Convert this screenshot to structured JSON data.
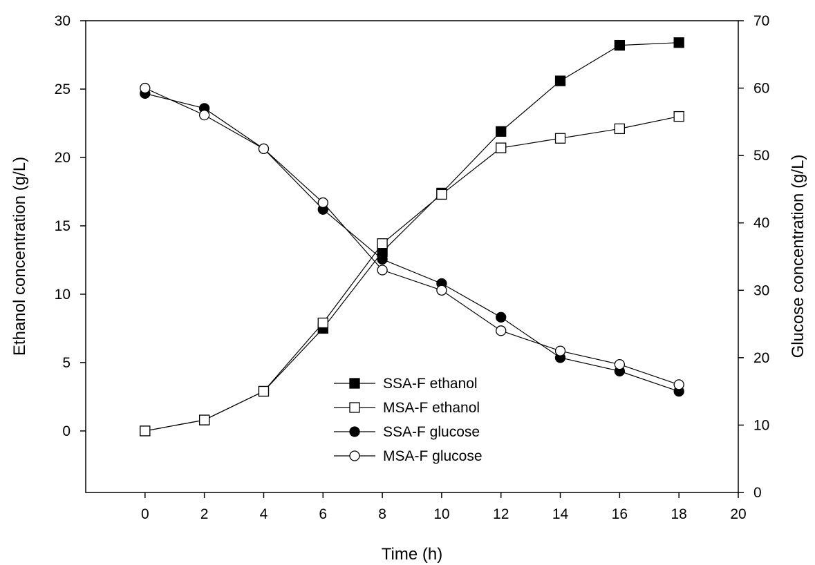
{
  "chart_data": {
    "type": "line",
    "title": "",
    "xlabel": "Time (h)",
    "ylabel": "Ethanol concentration (g/L)",
    "y2label": "Glucose concentration (g/L)",
    "xlim": [
      -2,
      20
    ],
    "ylim": [
      -4.5,
      30
    ],
    "y2lim": [
      0,
      70
    ],
    "xticks": [
      0,
      2,
      4,
      6,
      8,
      10,
      12,
      14,
      16,
      18,
      20
    ],
    "yticks": [
      0,
      5,
      10,
      15,
      20,
      25,
      30
    ],
    "y2ticks": [
      0,
      10,
      20,
      30,
      40,
      50,
      60,
      70
    ],
    "grid": false,
    "legend_position": "bottom-center",
    "x": [
      0,
      2,
      4,
      6,
      8,
      10,
      12,
      14,
      16,
      18
    ],
    "series": [
      {
        "name": "SSA-F ethanol",
        "axis": "left",
        "marker": "square-filled",
        "values": [
          0,
          0.8,
          2.9,
          7.5,
          13.1,
          17.4,
          21.9,
          25.6,
          28.2,
          28.4
        ]
      },
      {
        "name": "MSA-F ethanol",
        "axis": "left",
        "marker": "square-open",
        "values": [
          0,
          0.8,
          2.9,
          7.9,
          13.7,
          17.3,
          20.7,
          21.4,
          22.1,
          23.0
        ]
      },
      {
        "name": "SSA-F glucose",
        "axis": "right",
        "marker": "circle-filled",
        "values": [
          59.2,
          57.0,
          51.0,
          42.0,
          34.6,
          31.0,
          26.0,
          20.0,
          18.0,
          15.0
        ]
      },
      {
        "name": "MSA-F glucose",
        "axis": "right",
        "marker": "circle-open",
        "values": [
          60.0,
          56.0,
          51.0,
          43.0,
          33.0,
          30.0,
          24.0,
          21.0,
          19.0,
          16.0
        ]
      }
    ]
  }
}
